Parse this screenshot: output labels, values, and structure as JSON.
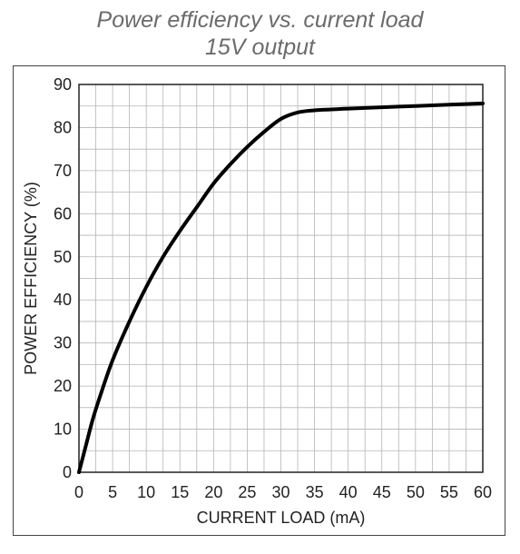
{
  "chart_data": {
    "type": "line",
    "title": "Power efficiency vs. current load",
    "subtitle": "15V output",
    "xlabel": "CURRENT LOAD (mA)",
    "ylabel": "POWER EFFICIENCY (%)",
    "xlim": [
      0,
      60
    ],
    "ylim": [
      0,
      90
    ],
    "xticks": [
      0,
      5,
      10,
      15,
      20,
      25,
      30,
      35,
      40,
      45,
      50,
      55,
      60
    ],
    "yticks": [
      0,
      10,
      20,
      30,
      40,
      50,
      60,
      70,
      80,
      90
    ],
    "grid": true,
    "series": [
      {
        "color": "#000000",
        "x": [
          0,
          1,
          2,
          3,
          5,
          7.5,
          10,
          12.5,
          15,
          17.5,
          20,
          22.5,
          25,
          27.5,
          30,
          32.5,
          35,
          37.5,
          40,
          45,
          50,
          55,
          60
        ],
        "y": [
          0,
          6,
          12,
          17,
          26,
          35,
          43,
          50,
          56,
          61.5,
          67,
          71.5,
          75.5,
          79,
          82,
          83.5,
          84,
          84.2,
          84.4,
          84.7,
          85,
          85.3,
          85.6
        ]
      }
    ]
  }
}
